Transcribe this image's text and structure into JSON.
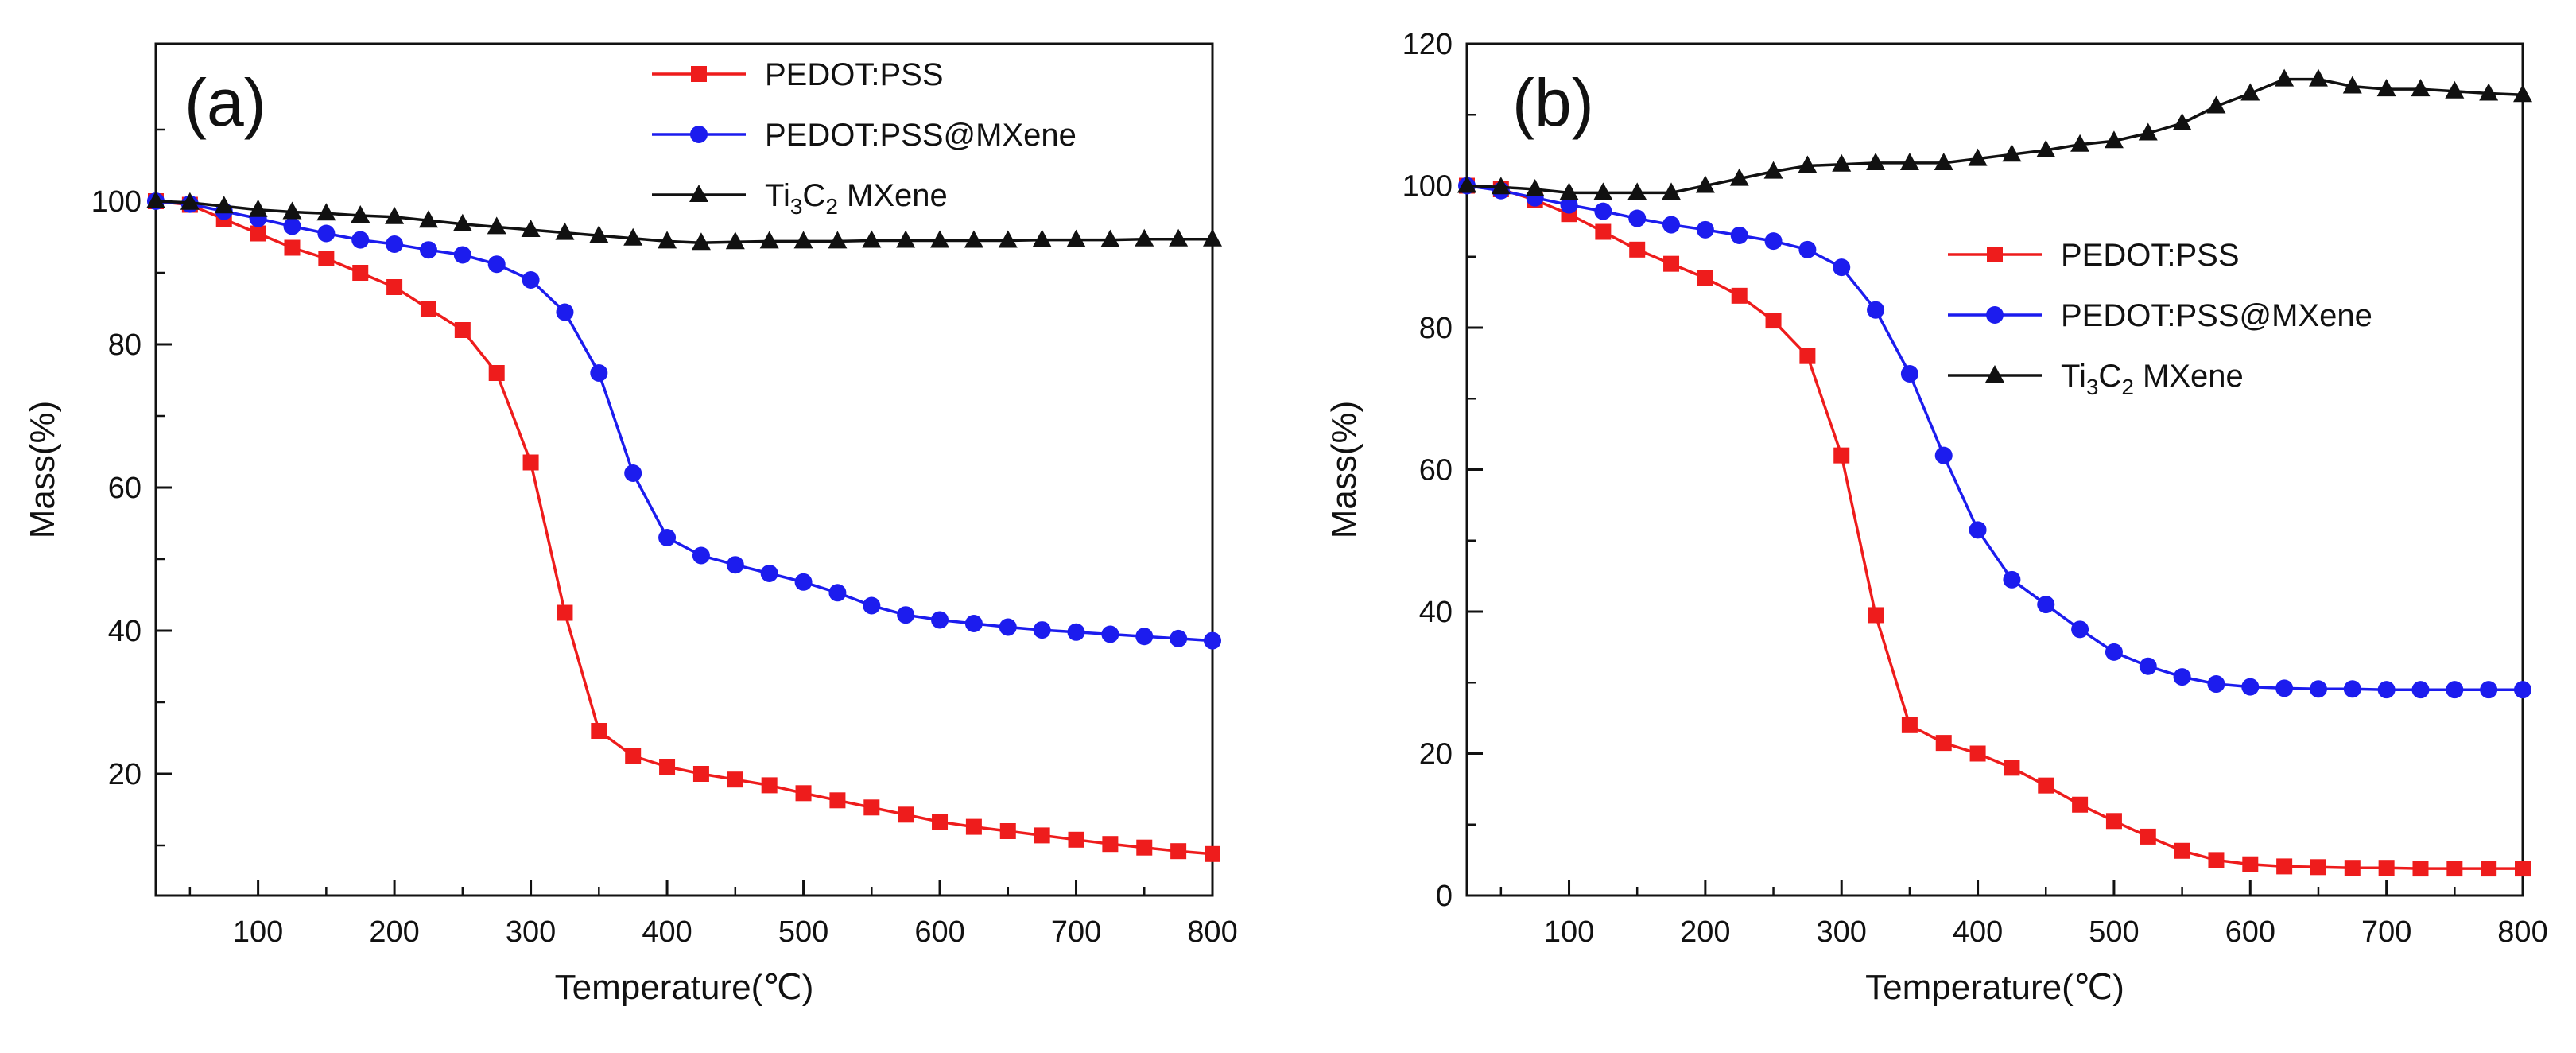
{
  "chart_data": [
    {
      "type": "line",
      "panel_label": "(a)",
      "xlabel": "Temperature(℃)",
      "ylabel": "Mass(%)",
      "xlim": [
        25,
        800
      ],
      "ylim": [
        3,
        122
      ],
      "xticks": [
        100,
        200,
        300,
        400,
        500,
        600,
        700,
        800
      ],
      "yticks": [
        20,
        40,
        60,
        80,
        100
      ],
      "legend_position": "top-right",
      "legend_entries": [
        {
          "name": "PEDOT:PSS",
          "text": "PEDOT:PSS"
        },
        {
          "name": "PEDOT:PSS@MXene",
          "text": "PEDOT:PSS@MXene"
        },
        {
          "name": "Ti3C2 MXene",
          "text": "Ti",
          "sub1": "3",
          "mid": "C",
          "sub2": "2",
          "tail": " MXene"
        }
      ],
      "x": [
        25,
        50,
        75,
        100,
        125,
        150,
        175,
        200,
        225,
        250,
        275,
        300,
        325,
        350,
        375,
        400,
        425,
        450,
        475,
        500,
        525,
        550,
        575,
        600,
        625,
        650,
        675,
        700,
        725,
        750,
        775,
        800
      ],
      "series": [
        {
          "name": "PEDOT:PSS",
          "color": "#ee1c1c",
          "marker": "square",
          "values": [
            100,
            99.5,
            97.5,
            95.5,
            93.5,
            92,
            90,
            88,
            85,
            82,
            76,
            63.5,
            42.5,
            26,
            22.5,
            21,
            20,
            19.2,
            18.4,
            17.3,
            16.3,
            15.3,
            14.3,
            13.3,
            12.6,
            12,
            11.4,
            10.8,
            10.2,
            9.7,
            9.2,
            8.8
          ]
        },
        {
          "name": "PEDOT:PSS@MXene",
          "color": "#1c1cee",
          "marker": "circle",
          "values": [
            100,
            99.6,
            98.6,
            97.6,
            96.5,
            95.5,
            94.6,
            94,
            93.2,
            92.5,
            91.2,
            89,
            84.5,
            76,
            62,
            53,
            50.5,
            49.2,
            48,
            46.8,
            45.3,
            43.5,
            42.2,
            41.5,
            41,
            40.5,
            40.1,
            39.8,
            39.5,
            39.2,
            38.9,
            38.6
          ]
        },
        {
          "name": "Ti3C2 MXene",
          "color": "#111111",
          "marker": "triangle",
          "values": [
            100,
            99.8,
            99.3,
            98.8,
            98.5,
            98.3,
            98,
            97.8,
            97.3,
            96.8,
            96.4,
            96,
            95.6,
            95.2,
            94.8,
            94.4,
            94.2,
            94.3,
            94.4,
            94.4,
            94.4,
            94.5,
            94.5,
            94.5,
            94.5,
            94.5,
            94.6,
            94.6,
            94.6,
            94.7,
            94.7,
            94.7
          ]
        }
      ]
    },
    {
      "type": "line",
      "panel_label": "(b)",
      "xlabel": "Temperature(℃)",
      "ylabel": "Mass(%)",
      "xlim": [
        25,
        800
      ],
      "ylim": [
        0,
        120
      ],
      "xticks": [
        100,
        200,
        300,
        400,
        500,
        600,
        700,
        800
      ],
      "yticks": [
        0,
        20,
        40,
        60,
        80,
        100,
        120
      ],
      "legend_position": "center-right",
      "legend_entries": [
        {
          "name": "PEDOT:PSS",
          "text": "PEDOT:PSS"
        },
        {
          "name": "PEDOT:PSS@MXene",
          "text": "PEDOT:PSS@MXene"
        },
        {
          "name": "Ti3C2 MXene",
          "text": "Ti",
          "sub1": "3",
          "mid": "C",
          "sub2": "2",
          "tail": " MXene"
        }
      ],
      "x": [
        25,
        50,
        75,
        100,
        125,
        150,
        175,
        200,
        225,
        250,
        275,
        300,
        325,
        350,
        375,
        400,
        425,
        450,
        475,
        500,
        525,
        550,
        575,
        600,
        625,
        650,
        675,
        700,
        725,
        750,
        775,
        800
      ],
      "series": [
        {
          "name": "PEDOT:PSS",
          "color": "#ee1c1c",
          "marker": "square",
          "values": [
            100,
            99.5,
            98,
            96,
            93.5,
            91,
            89,
            87,
            84.5,
            81,
            76,
            62,
            39.5,
            24,
            21.5,
            20,
            18,
            15.5,
            12.8,
            10.5,
            8.3,
            6.3,
            5,
            4.4,
            4.1,
            4,
            3.9,
            3.9,
            3.8,
            3.8,
            3.8,
            3.8
          ]
        },
        {
          "name": "PEDOT:PSS@MXene",
          "color": "#1c1cee",
          "marker": "circle",
          "values": [
            100,
            99.3,
            98.3,
            97.3,
            96.4,
            95.4,
            94.5,
            93.8,
            93,
            92.2,
            91,
            88.5,
            82.5,
            73.5,
            62,
            51.5,
            44.5,
            41,
            37.5,
            34.3,
            32.3,
            30.8,
            29.8,
            29.4,
            29.2,
            29.1,
            29.1,
            29,
            29,
            29,
            29,
            29
          ]
        },
        {
          "name": "Ti3C2 MXene",
          "color": "#111111",
          "marker": "triangle",
          "values": [
            100,
            99.8,
            99.5,
            99,
            99,
            99,
            99,
            100,
            101,
            102,
            102.8,
            103,
            103.2,
            103.2,
            103.2,
            103.8,
            104.4,
            105,
            105.8,
            106.3,
            107.4,
            108.8,
            111.2,
            113,
            115,
            115,
            114,
            113.6,
            113.6,
            113.3,
            113,
            112.8
          ]
        }
      ]
    }
  ]
}
